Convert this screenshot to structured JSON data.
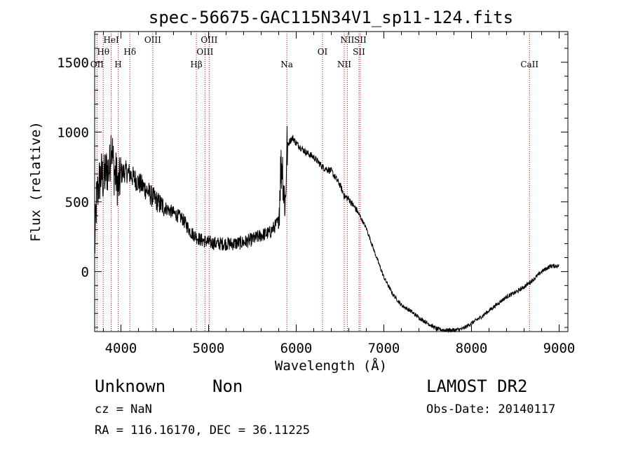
{
  "chart_data": {
    "type": "line",
    "title": "spec-56675-GAC115N34V1_sp11-124.fits",
    "xlabel": "Wavelength (Å)",
    "ylabel": "Flux (relative)",
    "xlim": [
      3700,
      9100
    ],
    "ylim": [
      -430,
      1720
    ],
    "xticks": [
      4000,
      5000,
      6000,
      7000,
      8000,
      9000
    ],
    "yticks": [
      0,
      500,
      1000,
      1500
    ],
    "line_color": "#000000",
    "marker_color": "#cc0000",
    "spectrum_knots": [
      [
        3700,
        150
      ],
      [
        3720,
        500
      ],
      [
        3750,
        640
      ],
      [
        3780,
        700
      ],
      [
        3800,
        650
      ],
      [
        3830,
        720
      ],
      [
        3870,
        740
      ],
      [
        3890,
        960
      ],
      [
        3920,
        720
      ],
      [
        3950,
        680
      ],
      [
        3970,
        600
      ],
      [
        4000,
        700
      ],
      [
        4050,
        720
      ],
      [
        4100,
        700
      ],
      [
        4150,
        670
      ],
      [
        4200,
        640
      ],
      [
        4250,
        610
      ],
      [
        4300,
        580
      ],
      [
        4350,
        540
      ],
      [
        4400,
        510
      ],
      [
        4450,
        480
      ],
      [
        4500,
        460
      ],
      [
        4600,
        420
      ],
      [
        4700,
        380
      ],
      [
        4800,
        280
      ],
      [
        4900,
        230
      ],
      [
        5000,
        210
      ],
      [
        5100,
        200
      ],
      [
        5200,
        200
      ],
      [
        5300,
        200
      ],
      [
        5400,
        210
      ],
      [
        5500,
        230
      ],
      [
        5600,
        260
      ],
      [
        5700,
        280
      ],
      [
        5800,
        360
      ],
      [
        5820,
        700
      ],
      [
        5840,
        800
      ],
      [
        5860,
        550
      ],
      [
        5880,
        500
      ],
      [
        5890,
        880
      ],
      [
        5920,
        930
      ],
      [
        5960,
        960
      ],
      [
        6000,
        920
      ],
      [
        6100,
        860
      ],
      [
        6200,
        820
      ],
      [
        6300,
        750
      ],
      [
        6400,
        720
      ],
      [
        6500,
        620
      ],
      [
        6550,
        540
      ],
      [
        6600,
        520
      ],
      [
        6700,
        430
      ],
      [
        6800,
        310
      ],
      [
        6900,
        130
      ],
      [
        7000,
        -40
      ],
      [
        7100,
        -160
      ],
      [
        7200,
        -240
      ],
      [
        7300,
        -280
      ],
      [
        7400,
        -330
      ],
      [
        7500,
        -370
      ],
      [
        7600,
        -410
      ],
      [
        7700,
        -420
      ],
      [
        7800,
        -420
      ],
      [
        7900,
        -410
      ],
      [
        8000,
        -370
      ],
      [
        8100,
        -330
      ],
      [
        8200,
        -280
      ],
      [
        8300,
        -230
      ],
      [
        8400,
        -180
      ],
      [
        8500,
        -150
      ],
      [
        8600,
        -110
      ],
      [
        8700,
        -60
      ],
      [
        8800,
        0
      ],
      [
        8900,
        40
      ],
      [
        9000,
        40
      ]
    ],
    "noise_regions": [
      {
        "from": 3700,
        "to": 4000,
        "amplitude": 180
      },
      {
        "from": 4000,
        "to": 4500,
        "amplitude": 80
      },
      {
        "from": 4500,
        "to": 5800,
        "amplitude": 50
      },
      {
        "from": 5800,
        "to": 5900,
        "amplitude": 200
      },
      {
        "from": 5900,
        "to": 6700,
        "amplitude": 25
      },
      {
        "from": 6700,
        "to": 9000,
        "amplitude": 15
      }
    ],
    "lines": [
      {
        "label": "OII",
        "wavelength": 3727,
        "row": 3
      },
      {
        "label": "Hθ",
        "wavelength": 3798,
        "row": 2
      },
      {
        "label": "HeI",
        "wavelength": 3889,
        "row": 1
      },
      {
        "label": "H",
        "wavelength": 3968,
        "row": 3
      },
      {
        "label": "Hδ",
        "wavelength": 4102,
        "row": 2
      },
      {
        "label": "OIII",
        "wavelength": 4363,
        "row": 1
      },
      {
        "label": "Hβ",
        "wavelength": 4861,
        "row": 3
      },
      {
        "label": "OIII",
        "wavelength": 4959,
        "row": 2
      },
      {
        "label": "OIII",
        "wavelength": 5007,
        "row": 1
      },
      {
        "label": "Na",
        "wavelength": 5893,
        "row": 3
      },
      {
        "label": "OI",
        "wavelength": 6300,
        "row": 2
      },
      {
        "label": "NII",
        "wavelength": 6548,
        "row": 3
      },
      {
        "label": "NII",
        "wavelength": 6583,
        "row": 1
      },
      {
        "label": "SII",
        "wavelength": 6716,
        "row": 2
      },
      {
        "label": "SII",
        "wavelength": 6731,
        "row": 1
      },
      {
        "label": "CaII",
        "wavelength": 8662,
        "row": 3
      }
    ]
  },
  "info": {
    "class": "Unknown",
    "subclass": "Non",
    "cz": "cz = NaN",
    "coords": "RA = 116.16170, DEC =  36.11225",
    "survey": "LAMOST DR2",
    "obs_date": "Obs-Date: 20140117"
  }
}
